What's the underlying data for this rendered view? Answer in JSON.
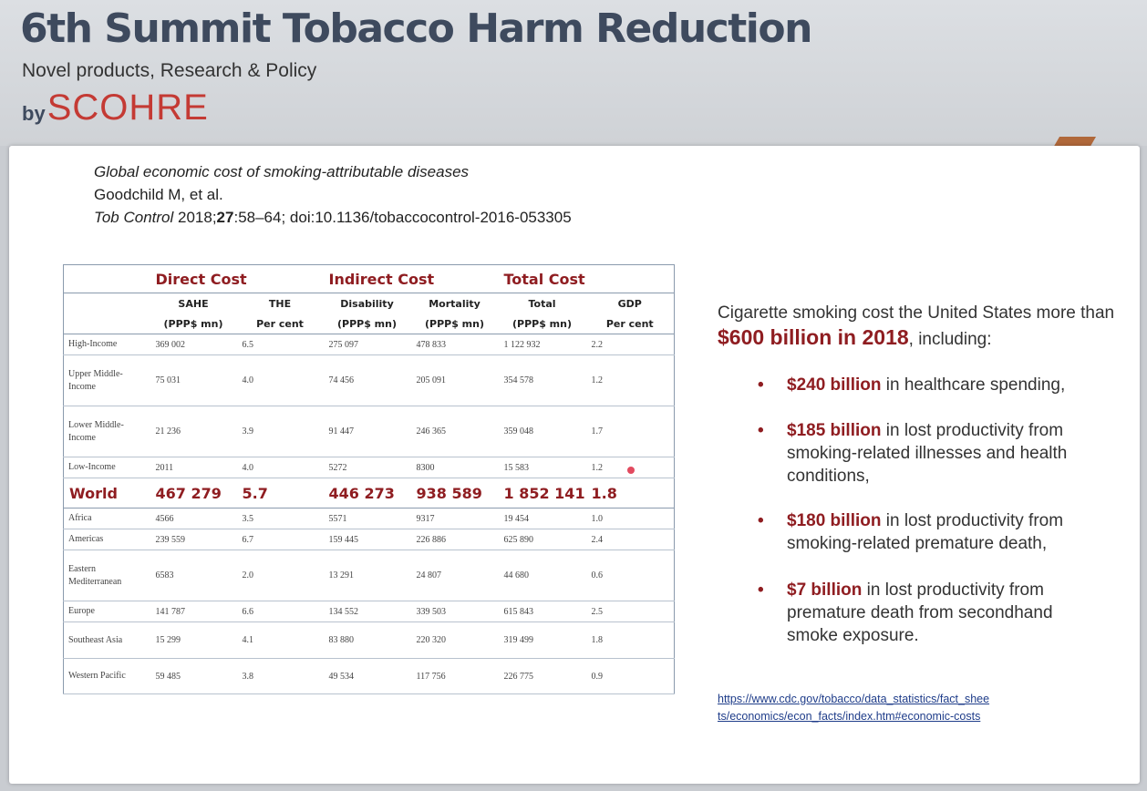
{
  "header": {
    "title": "6th Summit Tobacco Harm Reduction",
    "subtitle": "Novel products, Research & Policy",
    "brand_by": "by",
    "brand_name": "SCOHRE"
  },
  "reference": {
    "article_title": "Global economic cost of smoking-attributable diseases",
    "authors": "Goodchild M, et al.",
    "journal": "Tob Control",
    "year": "2018;",
    "volume": "27",
    "pages_doi": ":58–64; doi:10.1136/tobaccocontrol-2016-053305"
  },
  "table": {
    "groups": {
      "direct": "Direct Cost",
      "indirect": "Indirect Cost",
      "total": "Total Cost"
    },
    "columns": [
      "SAHE",
      "THE",
      "Disability",
      "Mortality",
      "Total",
      "GDP"
    ],
    "units": [
      "(PPP$ mn)",
      "Per cent",
      "(PPP$ mn)",
      "(PPP$ mn)",
      "(PPP$ mn)",
      "Per cent"
    ],
    "income_rows": [
      {
        "label": "High-Income",
        "values": [
          "369 002",
          "6.5",
          "275 097",
          "478 833",
          "1 122 932",
          "2.2"
        ]
      },
      {
        "label": "Upper Middle-Income",
        "values": [
          "75 031",
          "4.0",
          "74 456",
          "205 091",
          "354 578",
          "1.2"
        ]
      },
      {
        "label": "Lower Middle-Income",
        "values": [
          "21 236",
          "3.9",
          "91 447",
          "246 365",
          "359 048",
          "1.7"
        ]
      },
      {
        "label": "Low-Income",
        "values": [
          "2011",
          "4.0",
          "5272",
          "8300",
          "15 583",
          "1.2"
        ]
      }
    ],
    "world": {
      "label": "World",
      "values": [
        "467 279",
        "5.7",
        "446 273",
        "938 589",
        "1 852 141",
        "1.8"
      ]
    },
    "region_rows": [
      {
        "label": "Africa",
        "values": [
          "4566",
          "3.5",
          "5571",
          "9317",
          "19 454",
          "1.0"
        ]
      },
      {
        "label": "Americas",
        "values": [
          "239 559",
          "6.7",
          "159 445",
          "226 886",
          "625 890",
          "2.4"
        ]
      },
      {
        "label": "Eastern Mediterranean",
        "values": [
          "6583",
          "2.0",
          "13 291",
          "24 807",
          "44 680",
          "0.6"
        ]
      },
      {
        "label": "Europe",
        "values": [
          "141 787",
          "6.6",
          "134 552",
          "339 503",
          "615 843",
          "2.5"
        ]
      },
      {
        "label": "Southeast Asia",
        "values": [
          "15 299",
          "4.1",
          "83 880",
          "220 320",
          "319 499",
          "1.8"
        ]
      },
      {
        "label": "Western Pacific",
        "values": [
          "59 485",
          "3.8",
          "49 534",
          "117 756",
          "226 775",
          "0.9"
        ]
      }
    ]
  },
  "summary": {
    "intro_1": "Cigarette smoking cost the United States more than ",
    "intro_highlight": "$600 billion in 2018",
    "intro_2": ", including:",
    "bullet_marker": "•",
    "bullets": [
      {
        "amount": "$240 billion",
        "text": " in healthcare spending,"
      },
      {
        "amount": "$185 billion",
        "text": " in lost productivity from smoking-related illnesses and health conditions,"
      },
      {
        "amount": "$180 billion",
        "text": " in lost productivity from smoking-related premature death,"
      },
      {
        "amount": "$7 billion",
        "text": " in lost productivity from premature death from secondhand smoke exposure."
      }
    ],
    "source_url": "https://www.cdc.gov/tobacco/data_statistics/fact_sheets/economics/econ_facts/index.htm#economic-costs"
  }
}
